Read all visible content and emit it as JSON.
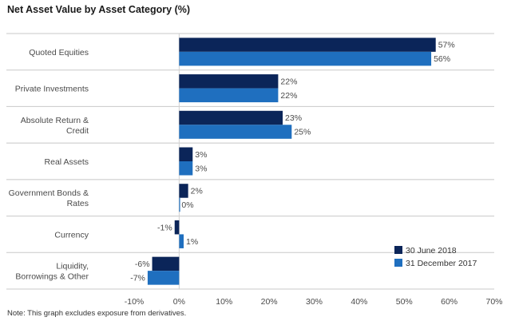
{
  "title": "Net Asset Value by Asset Category (%)",
  "note": "Note: This graph excludes exposure from derivatives.",
  "chart_data": {
    "type": "bar",
    "orientation": "horizontal",
    "title": "Net Asset Value by Asset Category (%)",
    "categories": [
      [
        "Quoted Equities"
      ],
      [
        "Private Investments"
      ],
      [
        "Absolute Return &",
        "Credit"
      ],
      [
        "Real Assets"
      ],
      [
        "Government Bonds &",
        "Rates"
      ],
      [
        "Currency"
      ],
      [
        "Liquidity,",
        "Borrowings & Other"
      ]
    ],
    "series": [
      {
        "name": "30 June 2018",
        "color": "#0b2559",
        "values": [
          57,
          22,
          23,
          3,
          2,
          -1,
          -6
        ],
        "labels": [
          "57%",
          "22%",
          "23%",
          "3%",
          "2%",
          "-1%",
          "-6%"
        ]
      },
      {
        "name": "31 December 2017",
        "color": "#1f6fbf",
        "values": [
          56,
          22,
          25,
          3,
          0,
          1,
          -7
        ],
        "labels": [
          "56%",
          "22%",
          "25%",
          "3%",
          "0%",
          "1%",
          "-7%"
        ]
      }
    ],
    "xlim": [
      -10,
      70
    ],
    "xticks": [
      "-10%",
      "0%",
      "10%",
      "20%",
      "30%",
      "40%",
      "50%",
      "60%",
      "70%"
    ],
    "xtick_values": [
      -10,
      0,
      10,
      20,
      30,
      40,
      50,
      60,
      70
    ],
    "legend_position": "bottom-right",
    "grid": "horizontal separators between categories"
  }
}
